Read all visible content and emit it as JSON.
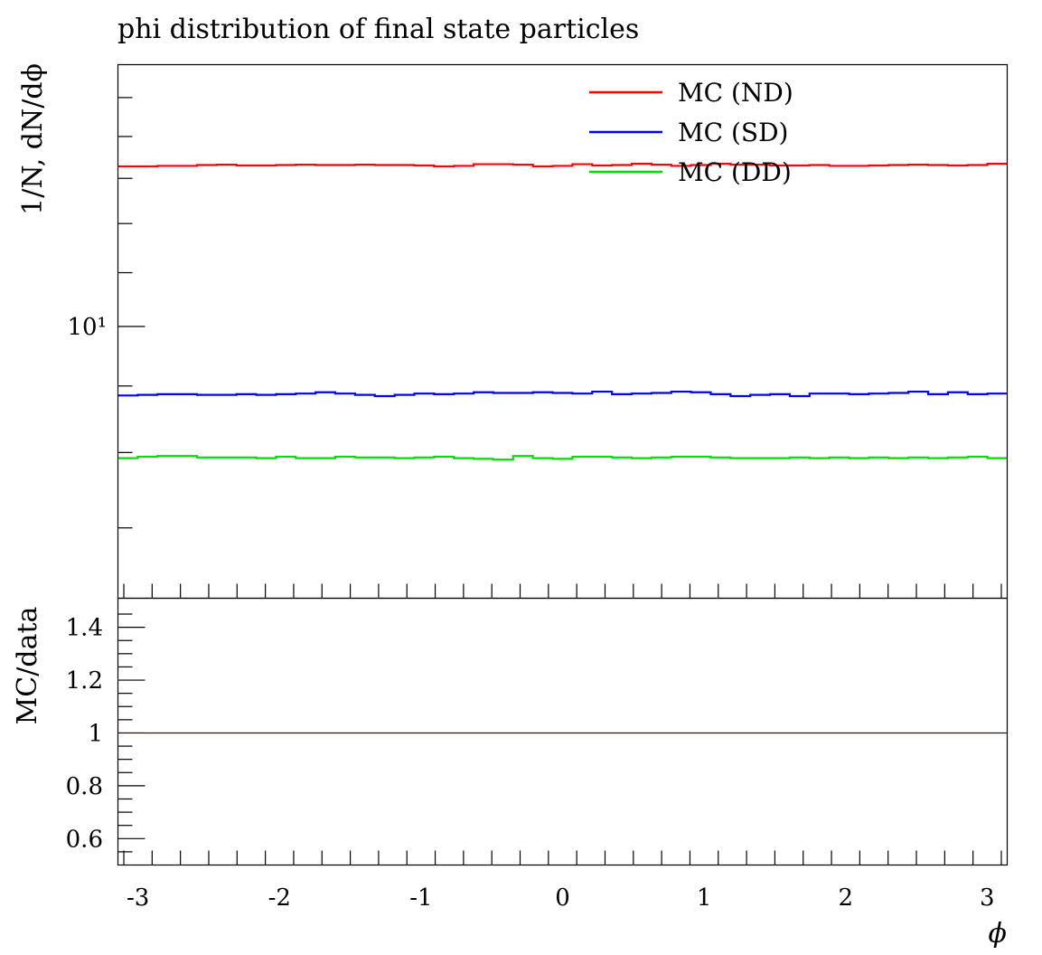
{
  "chart_data": {
    "type": "line",
    "title": "phi distribution of final state particles",
    "xlabel": "ϕ",
    "xlim": [
      -3.14159,
      3.14159
    ],
    "xticks": [
      -3,
      -2,
      -1,
      0,
      1,
      2,
      3
    ],
    "xtick_labels": [
      "-3",
      "-2",
      "-1",
      "0",
      "1",
      "2",
      "3"
    ],
    "main": {
      "ylabel": "1/N, dN/dϕ",
      "yscale": "log",
      "ylim": [
        6.18,
        15.9
      ],
      "ytick_label": "10¹",
      "ytick_value": 10,
      "series": [
        {
          "name": "MC (ND)",
          "color": "#ff0000",
          "values": [
            13.28,
            13.28,
            13.29,
            13.29,
            13.31,
            13.32,
            13.3,
            13.3,
            13.31,
            13.32,
            13.31,
            13.31,
            13.32,
            13.31,
            13.31,
            13.3,
            13.28,
            13.29,
            13.33,
            13.33,
            13.32,
            13.28,
            13.29,
            13.33,
            13.3,
            13.31,
            13.34,
            13.32,
            13.29,
            13.31,
            13.34,
            13.32,
            13.32,
            13.3,
            13.3,
            13.31,
            13.29,
            13.29,
            13.3,
            13.31,
            13.32,
            13.31,
            13.3,
            13.31,
            13.34
          ]
        },
        {
          "name": "MC (SD)",
          "color": "#0000ff",
          "values": [
            8.85,
            8.86,
            8.87,
            8.87,
            8.86,
            8.86,
            8.87,
            8.86,
            8.87,
            8.88,
            8.9,
            8.88,
            8.86,
            8.84,
            8.86,
            8.88,
            8.87,
            8.88,
            8.9,
            8.89,
            8.89,
            8.9,
            8.89,
            8.88,
            8.91,
            8.87,
            8.88,
            8.89,
            8.91,
            8.9,
            8.87,
            8.84,
            8.86,
            8.87,
            8.84,
            8.88,
            8.88,
            8.87,
            8.88,
            8.89,
            8.91,
            8.87,
            8.9,
            8.87,
            8.88
          ]
        },
        {
          "name": "MC (DD)",
          "color": "#00dd00",
          "values": [
            7.92,
            7.94,
            7.95,
            7.95,
            7.93,
            7.93,
            7.93,
            7.92,
            7.94,
            7.92,
            7.92,
            7.94,
            7.93,
            7.93,
            7.92,
            7.93,
            7.94,
            7.92,
            7.91,
            7.9,
            7.95,
            7.92,
            7.91,
            7.94,
            7.94,
            7.93,
            7.92,
            7.93,
            7.94,
            7.94,
            7.93,
            7.92,
            7.92,
            7.92,
            7.93,
            7.92,
            7.93,
            7.92,
            7.93,
            7.92,
            7.93,
            7.92,
            7.93,
            7.94,
            7.92
          ]
        }
      ]
    },
    "ratio": {
      "ylabel": "MC/data",
      "ylim": [
        0.5,
        1.51
      ],
      "yticks": [
        0.6,
        0.8,
        1,
        1.2,
        1.4
      ],
      "ytick_labels": [
        "0.6",
        "0.8",
        "1",
        "1.2",
        "1.4"
      ],
      "reference_line": 1,
      "reference_color": "#c8b400"
    },
    "legend_position": "top-right",
    "grid": false
  }
}
